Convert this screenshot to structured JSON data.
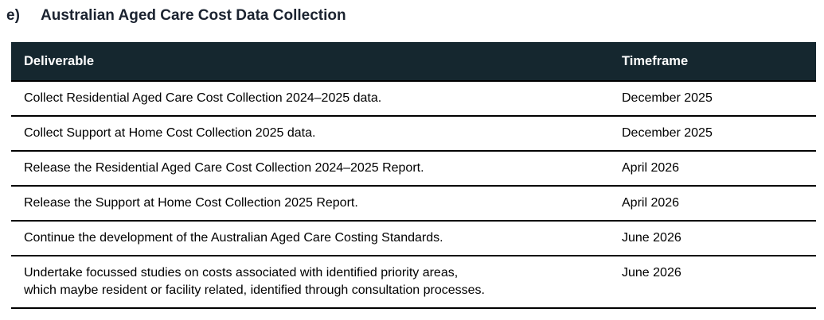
{
  "heading": {
    "marker": "e)",
    "title": "Australian Aged Care Cost Data Collection"
  },
  "table": {
    "columns": [
      {
        "key": "deliverable",
        "label": "Deliverable"
      },
      {
        "key": "timeframe",
        "label": "Timeframe"
      }
    ],
    "rows": [
      {
        "deliverable": "Collect Residential Aged Care Cost Collection 2024–2025 data.",
        "timeframe": "December 2025"
      },
      {
        "deliverable": "Collect Support at Home Cost Collection 2025 data.",
        "timeframe": "December 2025"
      },
      {
        "deliverable": "Release the Residential Aged Care Cost Collection 2024–2025 Report.",
        "timeframe": "April 2026"
      },
      {
        "deliverable": "Release the Support at Home Cost Collection 2025 Report.",
        "timeframe": "April 2026"
      },
      {
        "deliverable": "Continue the development of the Australian Aged Care Costing Standards.",
        "timeframe": "June 2026"
      },
      {
        "deliverable": "Undertake focussed studies on costs associated with identified priority areas,\nwhich maybe resident or facility related, identified through consultation processes.",
        "timeframe": "June 2026"
      }
    ]
  },
  "colors": {
    "table_header_bg": "#15272f",
    "table_header_text": "#ffffff",
    "row_border": "#000000",
    "body_text": "#000000",
    "heading_text": "#1b2330",
    "page_bg": "#ffffff"
  }
}
